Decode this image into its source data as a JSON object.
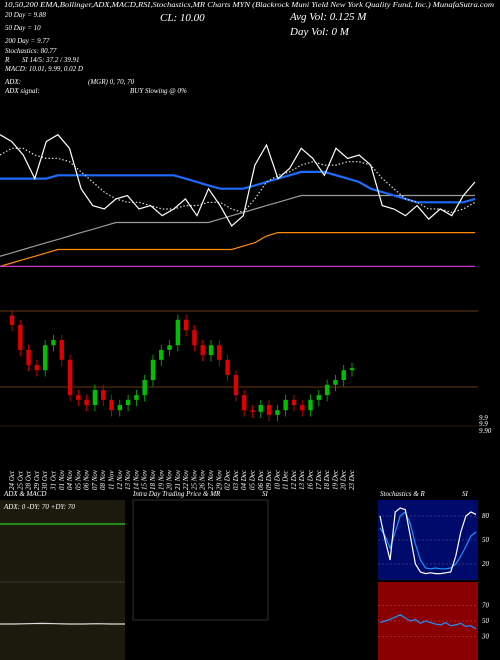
{
  "header": {
    "top_line": "10,50,200 EMA,Bollinger,ADX,MACD,RSI,Stochastics,MR Charts MYN (Blackrock Muni Yield New York Quality Fund, Inc.) MunafaSutra.com",
    "close": "CL: 10.00",
    "avg_vol": "Avg Vol: 0.125 M",
    "day_vol": "Day Vol: 0  M",
    "ema20": "20 Day = 9.88",
    "ema50": "50 Day = 10",
    "ema200": "200 Day = 9.77",
    "stoch": "Stochastics: 80.77",
    "rsi_r": "R",
    "rsi": "SI 14/5: 37.2 / 39.91",
    "macd": "MACD: 10.01, 9.99, 0.02 D",
    "adx_label": "ADX:",
    "adx": "(MGR) 0, 70, 70",
    "adx_signal_label": "ADX  signal:",
    "adx_signal": "BUY Slowing @ 0%"
  },
  "price_labels": [
    "9.9",
    "9.9",
    "9.90"
  ],
  "panels": {
    "adx_title": "ADX  & MACD",
    "intra_title": "Intra  Day Trading Price  & MR",
    "intra_si": "SI",
    "stoch_title": "Stochastics  & R",
    "stoch_si": "SI",
    "adx_text": "ADX: 0  -DY: 70  +DY: 70"
  },
  "chart_data": [
    {
      "type": "line",
      "ylim": [
        9.5,
        10.3
      ],
      "series": [
        {
          "color": "#9a9a9a",
          "values": [
            9.6,
            9.61,
            9.62,
            9.63,
            9.64,
            9.65,
            9.66,
            9.67,
            9.68,
            9.69,
            9.7,
            9.7,
            9.7,
            9.7,
            9.7,
            9.7,
            9.7,
            9.7,
            9.7,
            9.71,
            9.72,
            9.73,
            9.74,
            9.75,
            9.76,
            9.77,
            9.78,
            9.78,
            9.78,
            9.78,
            9.78,
            9.78,
            9.78,
            9.78,
            9.78,
            9.78,
            9.78,
            9.78,
            9.78,
            9.78,
            9.78,
            9.78
          ]
        },
        {
          "color": "#ff8c00",
          "values": [
            9.57,
            9.58,
            9.59,
            9.6,
            9.61,
            9.62,
            9.62,
            9.62,
            9.62,
            9.62,
            9.62,
            9.62,
            9.62,
            9.62,
            9.62,
            9.62,
            9.62,
            9.62,
            9.62,
            9.62,
            9.62,
            9.63,
            9.64,
            9.66,
            9.67,
            9.67,
            9.67,
            9.67,
            9.67,
            9.67,
            9.67,
            9.67,
            9.67,
            9.67,
            9.67,
            9.67,
            9.67,
            9.67,
            9.67,
            9.67,
            9.67,
            9.67
          ]
        },
        {
          "color": "#cc33cc",
          "values": [
            9.57,
            9.57,
            9.57,
            9.57,
            9.57,
            9.57,
            9.57,
            9.57,
            9.57,
            9.57,
            9.57,
            9.57,
            9.57,
            9.57,
            9.57,
            9.57,
            9.57,
            9.57,
            9.57,
            9.57,
            9.57,
            9.57,
            9.57,
            9.57,
            9.57,
            9.57,
            9.57,
            9.57,
            9.57,
            9.57,
            9.57,
            9.57,
            9.57,
            9.57,
            9.57,
            9.57,
            9.57,
            9.57,
            9.57,
            9.57,
            9.57,
            9.57
          ]
        },
        {
          "color": "#1e6bff",
          "values": [
            9.83,
            9.83,
            9.83,
            9.83,
            9.83,
            9.84,
            9.84,
            9.84,
            9.84,
            9.84,
            9.84,
            9.84,
            9.84,
            9.84,
            9.84,
            9.84,
            9.83,
            9.82,
            9.81,
            9.8,
            9.8,
            9.8,
            9.81,
            9.82,
            9.83,
            9.84,
            9.85,
            9.85,
            9.85,
            9.84,
            9.83,
            9.82,
            9.8,
            9.79,
            9.78,
            9.77,
            9.76,
            9.76,
            9.76,
            9.76,
            9.76,
            9.77
          ]
        },
        {
          "color": "#dddddd",
          "dashed": true,
          "values": [
            9.9,
            9.92,
            9.92,
            9.9,
            9.89,
            9.89,
            9.88,
            9.85,
            9.82,
            9.79,
            9.77,
            9.76,
            9.76,
            9.75,
            9.74,
            9.74,
            9.75,
            9.75,
            9.76,
            9.76,
            9.74,
            9.73,
            9.77,
            9.82,
            9.84,
            9.85,
            9.87,
            9.88,
            9.87,
            9.87,
            9.88,
            9.88,
            9.87,
            9.83,
            9.8,
            9.77,
            9.76,
            9.74,
            9.74,
            9.73,
            9.74,
            9.76
          ]
        },
        {
          "color": "#ffffff",
          "values": [
            9.96,
            9.94,
            9.9,
            9.83,
            9.94,
            9.96,
            9.92,
            9.8,
            9.75,
            9.74,
            9.77,
            9.78,
            9.74,
            9.75,
            9.72,
            9.74,
            9.77,
            9.72,
            9.8,
            9.75,
            9.69,
            9.72,
            9.87,
            9.93,
            9.83,
            9.86,
            9.92,
            9.89,
            9.84,
            9.92,
            9.89,
            9.9,
            9.87,
            9.75,
            9.74,
            9.72,
            9.75,
            9.71,
            9.74,
            9.72,
            9.78,
            9.82
          ]
        }
      ]
    },
    {
      "type": "candlestick",
      "ylim": [
        9.85,
        10.1
      ],
      "categories": [
        "24 Oct",
        "25 Oct",
        "28 Oct",
        "29 Oct",
        "30 Oct",
        "31 Oct",
        "01 Nov",
        "04 Nov",
        "05 Nov",
        "06 Nov",
        "07 Nov",
        "08 Nov",
        "11 Nov",
        "12 Nov",
        "13 Nov",
        "14 Nov",
        "15 Nov",
        "18 Nov",
        "19 Nov",
        "20 Nov",
        "21 Nov",
        "22 Nov",
        "25 Nov",
        "26 Nov",
        "27 Nov",
        "29 Nov",
        "02 Dec",
        "03 Dec",
        "04 Dec",
        "05 Dec",
        "06 Dec",
        "09 Dec",
        "10 Dec",
        "11 Dec",
        "12 Dec",
        "13 Dec",
        "16 Dec",
        "17 Dec",
        "18 Dec",
        "19 Dec",
        "20 Dec",
        "23 Dec"
      ],
      "open": [
        10.07,
        10.052,
        10.004,
        9.975,
        9.965,
        10.013,
        10.023,
        9.985,
        9.917,
        9.908,
        9.898,
        9.927,
        9.908,
        9.888,
        9.898,
        9.908,
        9.917,
        9.946,
        9.985,
        10.004,
        10.013,
        10.062,
        10.042,
        10.013,
        9.994,
        10.013,
        9.985,
        9.956,
        9.917,
        9.888,
        9.885,
        9.898,
        9.879,
        9.888,
        9.908,
        9.898,
        9.888,
        9.908,
        9.917,
        9.937,
        9.946,
        9.965
      ],
      "high": [
        10.08,
        10.062,
        10.014,
        9.985,
        10.023,
        10.033,
        10.033,
        9.995,
        9.927,
        9.918,
        9.937,
        9.937,
        9.918,
        9.908,
        9.918,
        9.927,
        9.956,
        9.995,
        10.014,
        10.023,
        10.072,
        10.072,
        10.052,
        10.023,
        10.023,
        10.023,
        9.995,
        9.966,
        9.927,
        9.898,
        9.908,
        9.908,
        9.898,
        9.918,
        9.918,
        9.908,
        9.918,
        9.927,
        9.947,
        9.956,
        9.975,
        9.979
      ],
      "low": [
        10.04,
        9.992,
        9.963,
        9.953,
        9.953,
        10.001,
        9.973,
        9.905,
        9.896,
        9.886,
        9.886,
        9.896,
        9.876,
        9.876,
        9.886,
        9.896,
        9.905,
        9.934,
        9.973,
        9.992,
        10.001,
        10.03,
        10.001,
        9.982,
        9.982,
        9.973,
        9.944,
        9.905,
        9.876,
        9.873,
        9.873,
        9.867,
        9.867,
        9.876,
        9.886,
        9.876,
        9.876,
        9.896,
        9.905,
        9.925,
        9.934,
        9.953
      ],
      "close": [
        10.052,
        10.004,
        9.975,
        9.965,
        10.013,
        10.023,
        9.985,
        9.917,
        9.908,
        9.898,
        9.927,
        9.908,
        9.888,
        9.898,
        9.908,
        9.917,
        9.946,
        9.985,
        10.004,
        10.013,
        10.062,
        10.042,
        10.013,
        9.994,
        10.013,
        9.985,
        9.956,
        9.917,
        9.888,
        9.885,
        9.898,
        9.879,
        9.888,
        9.908,
        9.898,
        9.888,
        9.908,
        9.917,
        9.937,
        9.946,
        9.965,
        9.969
      ]
    },
    {
      "type": "line",
      "ylim": [
        0,
        100
      ],
      "series": [
        {
          "color": "#22cc22",
          "values": [
            70,
            70,
            70,
            70,
            70,
            70,
            70,
            70,
            70,
            70
          ]
        }
      ]
    },
    {
      "type": "line",
      "ylim": [
        -0.1,
        0.1
      ],
      "series": [
        {
          "color": "#dddddd",
          "values": [
            0.02,
            0.02,
            0.021,
            0.022,
            0.021,
            0.02,
            0.02,
            0.021,
            0.02,
            0.02
          ]
        }
      ]
    },
    {
      "type": "line",
      "ylim": [
        0,
        100
      ],
      "yticks": [
        20,
        50,
        80
      ],
      "series": [
        {
          "color": "#1e90ff",
          "values": [
            65,
            55,
            40,
            60,
            80,
            85,
            70,
            45,
            25,
            15,
            14,
            15,
            14,
            14,
            15,
            20,
            30,
            42,
            55,
            60
          ]
        },
        {
          "color": "#ffffff",
          "values": [
            80,
            50,
            25,
            85,
            90,
            88,
            55,
            20,
            10,
            8,
            9,
            8,
            8,
            9,
            10,
            30,
            60,
            80,
            85,
            82
          ]
        }
      ]
    },
    {
      "type": "line",
      "ylim": [
        0,
        100
      ],
      "yticks": [
        30,
        50,
        70
      ],
      "series": [
        {
          "color": "#1e90ff",
          "values": [
            48,
            50,
            52,
            55,
            58,
            54,
            50,
            52,
            47,
            50,
            48,
            46,
            45,
            48,
            44,
            45,
            47,
            43,
            44,
            40
          ]
        }
      ]
    }
  ]
}
